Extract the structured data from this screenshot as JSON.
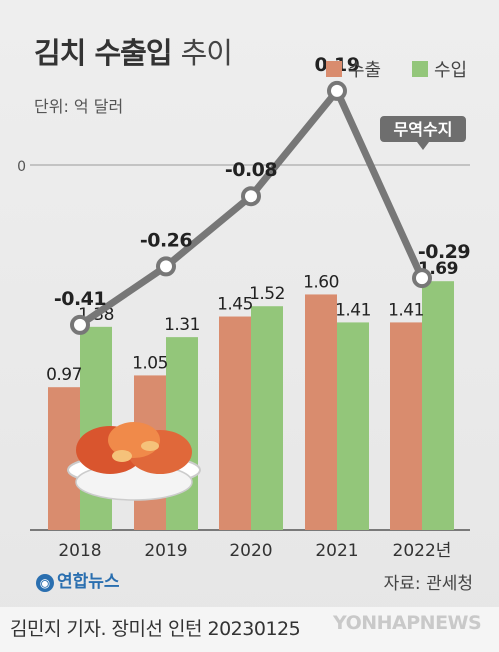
{
  "header": {
    "title_main": "김치 수출입",
    "title_sub": "추이",
    "unit": "단위: 억 달러"
  },
  "legend": {
    "export_label": "수출",
    "import_label": "수입"
  },
  "footer": {
    "brand": "연합뉴스",
    "source": "자료: 관세청",
    "credit": "김민지 기자. 장미선 인턴  20230125",
    "agency": "YONHAPNEWS"
  },
  "chart_data": {
    "type": "bar",
    "categories": [
      "2018",
      "2019",
      "2020",
      "2021",
      "2022년"
    ],
    "series": [
      {
        "name": "수출",
        "values": [
          0.97,
          1.05,
          1.45,
          1.6,
          1.41
        ],
        "color": "#d98c6e"
      },
      {
        "name": "수입",
        "values": [
          1.38,
          1.31,
          1.52,
          1.41,
          1.69
        ],
        "color": "#93c67a"
      }
    ],
    "ylim": [
      0,
      1.8
    ],
    "line": {
      "name": "무역수지",
      "type": "line",
      "values": [
        -0.41,
        -0.26,
        -0.08,
        0.19,
        -0.29
      ],
      "labels": [
        "-0.41",
        "-0.26",
        "-0.08",
        "0.19",
        "-0.29"
      ],
      "zero_label": "0",
      "ylim": [
        -0.45,
        0.25
      ],
      "color": "#777777"
    },
    "bar_labels": {
      "수출": [
        "0.97",
        "1.05",
        "1.45",
        "1.60",
        "1.41"
      ],
      "수입": [
        "1.38",
        "1.31",
        "1.52",
        "1.41",
        "1.69"
      ]
    },
    "title": "김치 수출입 추이",
    "ylabel": "단위: 억 달러",
    "legend_position": "top-right",
    "grid": false
  }
}
